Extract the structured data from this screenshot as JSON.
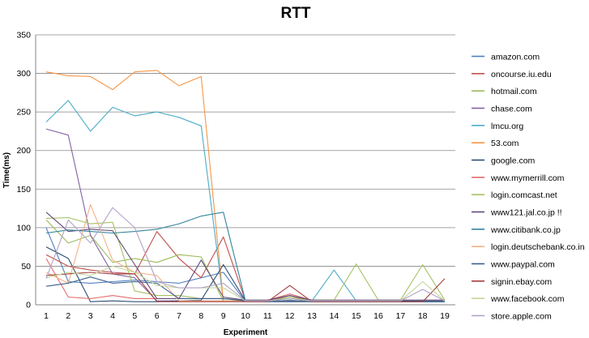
{
  "chart_data": {
    "type": "line",
    "title": "RTT",
    "xlabel": "Experiment",
    "ylabel": "Time(ms)",
    "x": [
      1,
      2,
      3,
      4,
      5,
      6,
      7,
      8,
      9,
      10,
      11,
      12,
      13,
      14,
      15,
      16,
      17,
      18,
      19
    ],
    "ylim": [
      0,
      350
    ],
    "yticks": [
      0,
      50,
      100,
      150,
      200,
      250,
      300,
      350
    ],
    "grid": "horizontal",
    "legend_position": "right",
    "series": [
      {
        "name": "amazon.com",
        "color": "#4F81BD",
        "values": [
          100,
          30,
          28,
          30,
          32,
          30,
          28,
          35,
          42,
          4,
          4,
          6,
          4,
          4,
          4,
          4,
          4,
          4,
          4
        ]
      },
      {
        "name": "oncourse.iu.edu",
        "color": "#C0504D",
        "values": [
          65,
          50,
          45,
          42,
          40,
          95,
          60,
          35,
          88,
          5,
          5,
          12,
          5,
          5,
          5,
          5,
          5,
          5,
          5
        ]
      },
      {
        "name": "hotmail.com",
        "color": "#9BBB59",
        "values": [
          110,
          80,
          90,
          55,
          60,
          55,
          65,
          62,
          5,
          5,
          5,
          10,
          5,
          5,
          5,
          5,
          5,
          5,
          5
        ]
      },
      {
        "name": "chase.com",
        "color": "#8064A2",
        "values": [
          228,
          220,
          90,
          40,
          35,
          5,
          5,
          5,
          5,
          5,
          5,
          5,
          5,
          5,
          5,
          5,
          5,
          5,
          5
        ]
      },
      {
        "name": "lmcu.org",
        "color": "#4BACC6",
        "values": [
          237,
          265,
          225,
          256,
          245,
          250,
          243,
          232,
          5,
          5,
          5,
          5,
          5,
          45,
          5,
          5,
          5,
          5,
          5
        ]
      },
      {
        "name": "53.com",
        "color": "#F79646",
        "values": [
          302,
          297,
          296,
          279,
          302,
          304,
          284,
          296,
          5,
          5,
          5,
          5,
          5,
          5,
          5,
          5,
          5,
          5,
          5
        ]
      },
      {
        "name": "google.com",
        "color": "#2C4D75",
        "values": [
          75,
          60,
          4,
          5,
          4,
          4,
          5,
          6,
          52,
          5,
          4,
          4,
          4,
          4,
          4,
          4,
          4,
          4,
          4
        ]
      },
      {
        "name": "www.mymerrill.com",
        "color": "#E46C6C",
        "values": [
          60,
          10,
          8,
          12,
          8,
          8,
          8,
          8,
          8,
          6,
          6,
          14,
          6,
          6,
          6,
          6,
          6,
          6,
          6
        ]
      },
      {
        "name": "login.comcast.net",
        "color": "#A4C263",
        "values": [
          112,
          113,
          105,
          107,
          18,
          12,
          12,
          8,
          8,
          6,
          6,
          8,
          6,
          6,
          53,
          6,
          6,
          52,
          6
        ]
      },
      {
        "name": "www121.jal.co.jp  !!",
        "color": "#604A7B",
        "values": [
          120,
          95,
          98,
          96,
          52,
          8,
          8,
          58,
          10,
          6,
          6,
          12,
          6,
          6,
          6,
          6,
          6,
          6,
          6
        ]
      },
      {
        "name": "www.citibank.co.jp",
        "color": "#31859C",
        "values": [
          93,
          97,
          95,
          93,
          95,
          98,
          105,
          115,
          120,
          5,
          5,
          5,
          5,
          5,
          5,
          5,
          5,
          5,
          5
        ]
      },
      {
        "name": "login.deutschebank.co.in",
        "color": "#F4B183",
        "values": [
          42,
          28,
          130,
          58,
          42,
          38,
          5,
          5,
          5,
          5,
          5,
          5,
          5,
          5,
          5,
          5,
          5,
          5,
          5
        ]
      },
      {
        "name": "www.paypal.com",
        "color": "#3A5F8F",
        "values": [
          24,
          28,
          36,
          28,
          30,
          28,
          8,
          8,
          8,
          5,
          5,
          5,
          5,
          5,
          5,
          5,
          5,
          5,
          5
        ]
      },
      {
        "name": "signin.ebay.com",
        "color": "#A33C3A",
        "values": [
          38,
          40,
          42,
          40,
          40,
          4,
          4,
          4,
          4,
          4,
          4,
          25,
          4,
          4,
          4,
          4,
          4,
          4,
          34
        ]
      },
      {
        "name": "www.facebook.com",
        "color": "#C3D69B",
        "values": [
          35,
          42,
          38,
          50,
          42,
          25,
          22,
          22,
          22,
          5,
          5,
          8,
          5,
          5,
          5,
          5,
          5,
          30,
          5
        ]
      },
      {
        "name": "store.apple.com",
        "color": "#B3A2C7",
        "values": [
          34,
          110,
          80,
          126,
          100,
          30,
          22,
          22,
          28,
          5,
          5,
          8,
          5,
          5,
          5,
          5,
          5,
          20,
          5
        ]
      }
    ]
  }
}
